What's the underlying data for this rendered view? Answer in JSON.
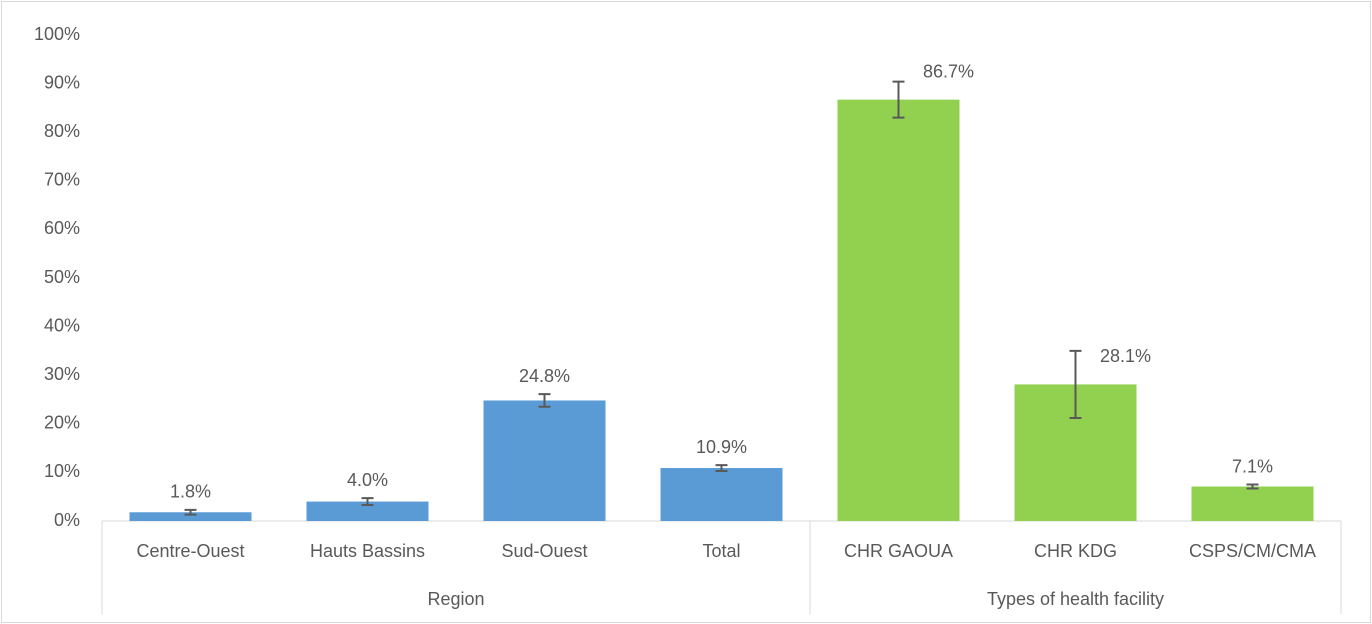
{
  "chart_data": {
    "type": "bar",
    "categories": [
      "Centre-Ouest",
      "Hauts Bassins",
      "Sud-Ouest",
      "Total",
      "CHR GAOUA",
      "CHR KDG",
      "CSPS/CM/CMA"
    ],
    "values": [
      1.8,
      4.0,
      24.8,
      10.9,
      86.7,
      28.1,
      7.1
    ],
    "value_labels": [
      "1.8%",
      "4.0%",
      "24.8%",
      "10.9%",
      "86.7%",
      "28.1%",
      "7.1%"
    ],
    "errors": [
      0.5,
      0.7,
      1.3,
      0.6,
      3.7,
      6.9,
      0.4
    ],
    "groups": [
      {
        "label": "Region",
        "size": 4,
        "color": "#5b9bd5"
      },
      {
        "label": "Types of health facility",
        "size": 3,
        "color": "#92d050"
      }
    ],
    "ylim": [
      0,
      100
    ],
    "yticks": [
      {
        "value": 0,
        "label": "0%"
      },
      {
        "value": 10,
        "label": "10%"
      },
      {
        "value": 20,
        "label": "20%"
      },
      {
        "value": 30,
        "label": "30%"
      },
      {
        "value": 40,
        "label": "40%"
      },
      {
        "value": 50,
        "label": "50%"
      },
      {
        "value": 60,
        "label": "60%"
      },
      {
        "value": 70,
        "label": "70%"
      },
      {
        "value": 80,
        "label": "80%"
      },
      {
        "value": 90,
        "label": "90%"
      },
      {
        "value": 100,
        "label": "100%"
      }
    ],
    "grid": false
  }
}
